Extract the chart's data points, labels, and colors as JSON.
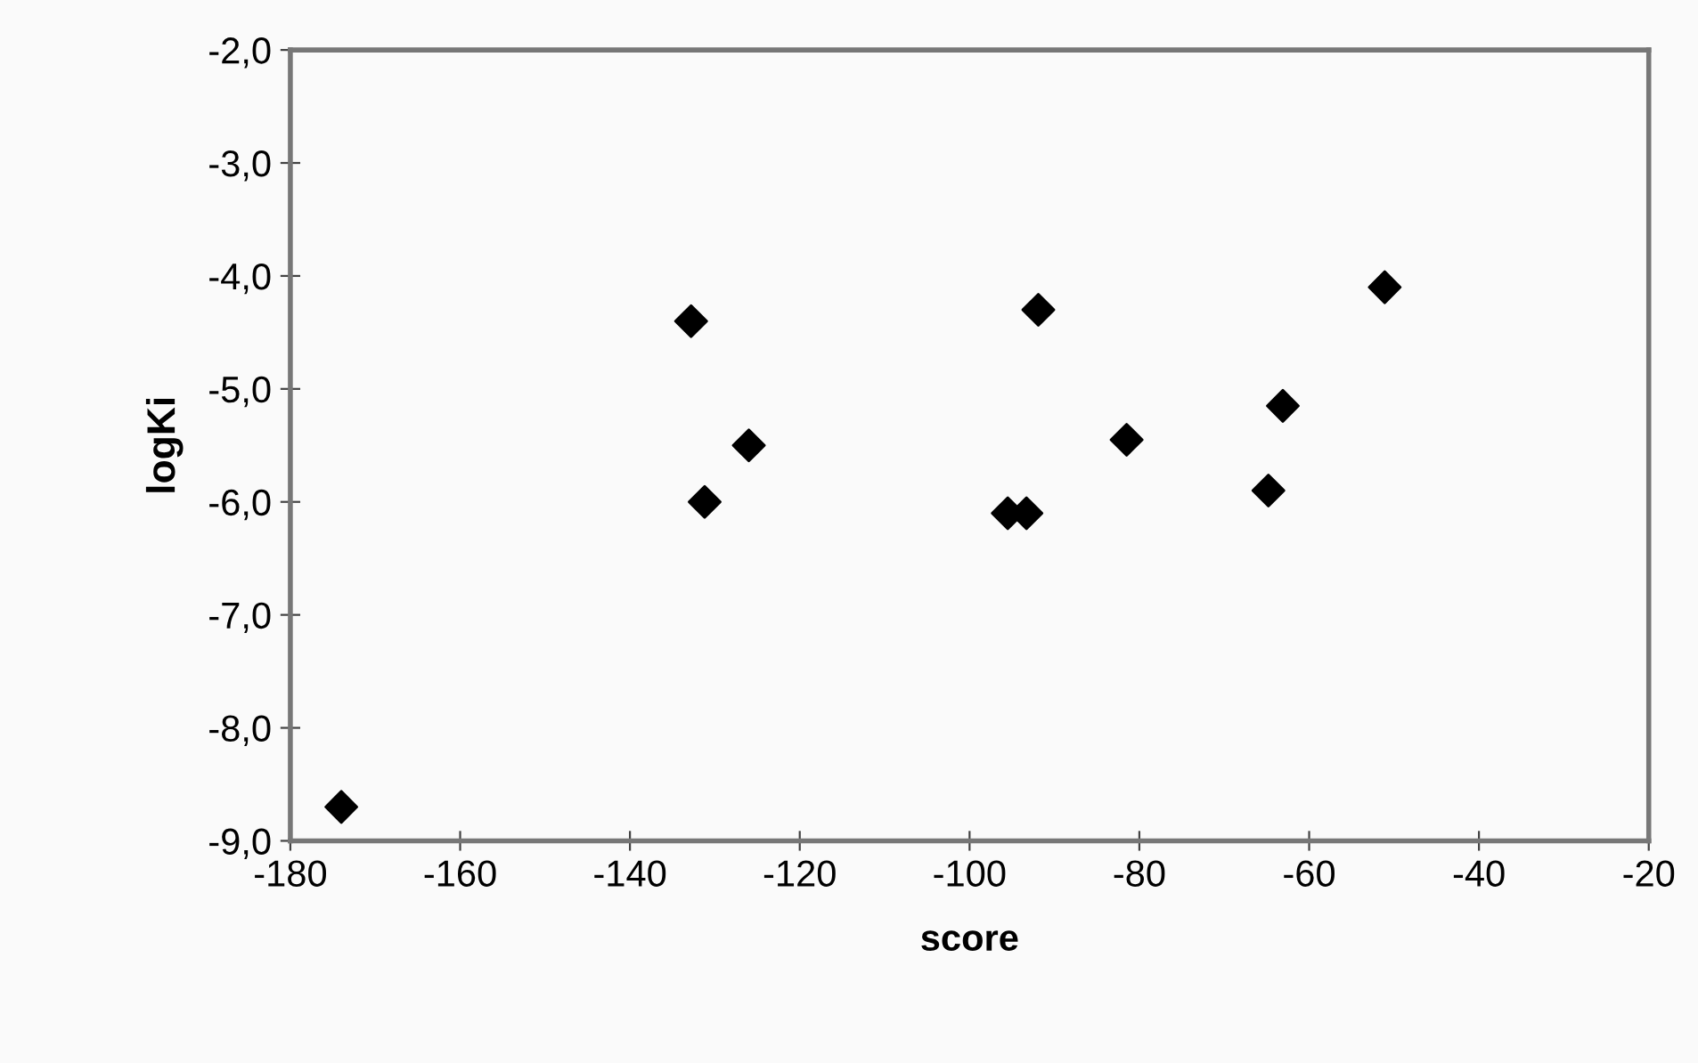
{
  "chart_data": {
    "type": "scatter",
    "xlabel": "score",
    "ylabel": "logKi",
    "x": [
      -174.0,
      -132.8,
      -126.0,
      -131.2,
      -91.9,
      -51.1,
      -63.1,
      -81.5,
      -64.8,
      -95.5,
      -93.3
    ],
    "values": [
      -8.7,
      -4.4,
      -5.5,
      -6.0,
      -4.3,
      -4.1,
      -5.15,
      -5.45,
      -5.9,
      -6.1,
      -6.1
    ],
    "color": "#000000",
    "marker": "diamond",
    "grid": false,
    "legend": false,
    "xlim": [
      -180,
      -20
    ],
    "xticks": [
      -180,
      -160,
      -140,
      -120,
      -100,
      -80,
      -60,
      -40,
      -20
    ],
    "ylim": [
      -9,
      -2
    ],
    "yticks": [
      {
        "value": -9,
        "label": "-9,0"
      },
      {
        "value": -8,
        "label": "-8,0"
      },
      {
        "value": -7,
        "label": "-7,0"
      },
      {
        "value": -6,
        "label": "-6,0"
      },
      {
        "value": -5,
        "label": "-5,0"
      },
      {
        "value": -4,
        "label": "-4,0"
      },
      {
        "value": -3,
        "label": "-3,0"
      },
      {
        "value": -2,
        "label": "-2,0"
      }
    ]
  }
}
